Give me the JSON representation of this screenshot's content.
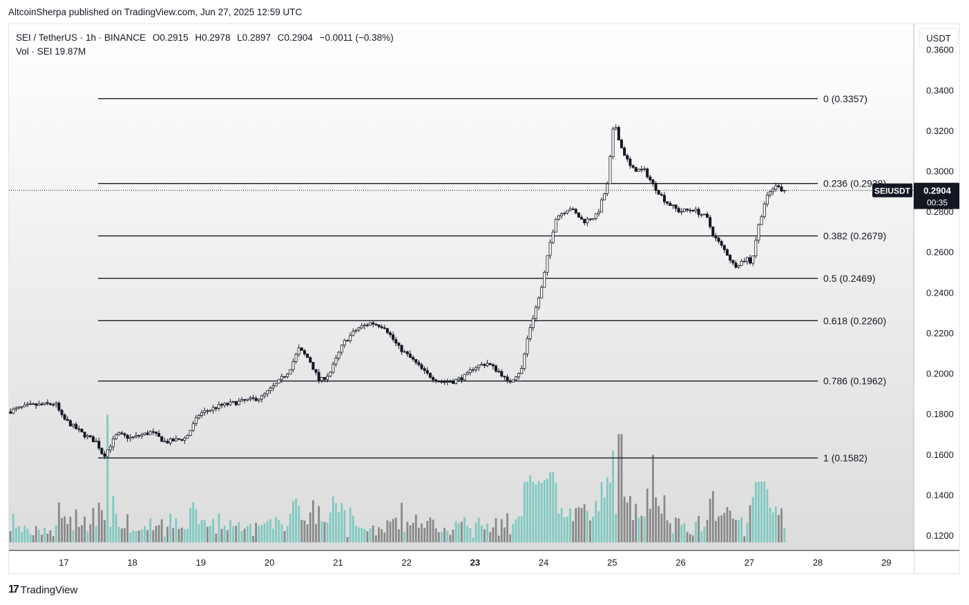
{
  "header": {
    "published_line": "AltcoinSherpa published on TradingView.com, Jun 27, 2025 12:59 UTC"
  },
  "legend": {
    "symbol": "SEI / TetherUS · 1h · BINANCE",
    "open": "O0.2915",
    "high": "H0.2978",
    "low": "L0.2897",
    "close": "C0.2904",
    "change": "−0.0011 (−0.38%)",
    "volume": "Vol · SEI  19.87M"
  },
  "footer": {
    "brand": "TradingView",
    "brand_mark": "17"
  },
  "colors": {
    "up": "#26a69a",
    "down": "#131722",
    "vol_up": "#7ec9c1",
    "vol_down": "#888888",
    "fib_line": "#131722",
    "price_tag": "#131722"
  },
  "chart_data": {
    "type": "candlestick",
    "currency_button": "USDT",
    "y_ticks": [
      "0.3600",
      "0.3400",
      "0.3200",
      "0.3000",
      "0.2800",
      "0.2600",
      "0.2400",
      "0.2200",
      "0.2000",
      "0.1800",
      "0.1600",
      "0.1400",
      "0.1200"
    ],
    "y_tick_values": [
      0.36,
      0.34,
      0.32,
      0.3,
      0.28,
      0.26,
      0.24,
      0.22,
      0.2,
      0.18,
      0.16,
      0.14,
      0.12
    ],
    "ylim": [
      0.1125,
      0.3725
    ],
    "x_ticks": [
      "17",
      "18",
      "19",
      "20",
      "21",
      "22",
      "23",
      "24",
      "25",
      "26",
      "27",
      "28",
      "29"
    ],
    "x_range_days": [
      16.2,
      29.4
    ],
    "last_day": 27.5,
    "fib_levels": [
      {
        "label": "0 (0.3357)",
        "value": 0.3357
      },
      {
        "label": "0.236 (0.2938)",
        "value": 0.2938
      },
      {
        "label": "0.382 (0.2679)",
        "value": 0.2679
      },
      {
        "label": "0.5 (0.2469)",
        "value": 0.2469
      },
      {
        "label": "0.618 (0.2260)",
        "value": 0.226
      },
      {
        "label": "0.786 (0.1962)",
        "value": 0.1962
      },
      {
        "label": "1 (0.1582)",
        "value": 0.1582
      }
    ],
    "fib_start_day": 17.5,
    "price_tag": {
      "symbol": "SEIUSDT",
      "price": "0.2904",
      "countdown": "00:35",
      "value": 0.2904
    },
    "anchors": [
      [
        16.2,
        0.181
      ],
      [
        16.5,
        0.184
      ],
      [
        16.9,
        0.185
      ],
      [
        17.0,
        0.178
      ],
      [
        17.3,
        0.17
      ],
      [
        17.5,
        0.166
      ],
      [
        17.6,
        0.159
      ],
      [
        17.8,
        0.17
      ],
      [
        18.0,
        0.168
      ],
      [
        18.3,
        0.171
      ],
      [
        18.5,
        0.166
      ],
      [
        18.8,
        0.168
      ],
      [
        19.0,
        0.18
      ],
      [
        19.3,
        0.184
      ],
      [
        19.6,
        0.186
      ],
      [
        19.9,
        0.188
      ],
      [
        20.1,
        0.194
      ],
      [
        20.3,
        0.201
      ],
      [
        20.45,
        0.212
      ],
      [
        20.6,
        0.207
      ],
      [
        20.75,
        0.196
      ],
      [
        20.9,
        0.2
      ],
      [
        21.1,
        0.215
      ],
      [
        21.3,
        0.222
      ],
      [
        21.5,
        0.225
      ],
      [
        21.7,
        0.223
      ],
      [
        21.9,
        0.213
      ],
      [
        22.1,
        0.207
      ],
      [
        22.3,
        0.2
      ],
      [
        22.5,
        0.196
      ],
      [
        22.7,
        0.196
      ],
      [
        22.9,
        0.199
      ],
      [
        23.0,
        0.203
      ],
      [
        23.2,
        0.205
      ],
      [
        23.4,
        0.2
      ],
      [
        23.5,
        0.195
      ],
      [
        23.7,
        0.202
      ],
      [
        23.8,
        0.22
      ],
      [
        24.0,
        0.243
      ],
      [
        24.1,
        0.262
      ],
      [
        24.2,
        0.277
      ],
      [
        24.4,
        0.282
      ],
      [
        24.6,
        0.275
      ],
      [
        24.8,
        0.278
      ],
      [
        24.95,
        0.293
      ],
      [
        25.05,
        0.325
      ],
      [
        25.15,
        0.312
      ],
      [
        25.3,
        0.301
      ],
      [
        25.5,
        0.3
      ],
      [
        25.6,
        0.294
      ],
      [
        25.8,
        0.285
      ],
      [
        26.0,
        0.28
      ],
      [
        26.2,
        0.281
      ],
      [
        26.4,
        0.277
      ],
      [
        26.5,
        0.268
      ],
      [
        26.7,
        0.259
      ],
      [
        26.8,
        0.253
      ],
      [
        27.0,
        0.257
      ],
      [
        27.05,
        0.254
      ],
      [
        27.15,
        0.272
      ],
      [
        27.25,
        0.285
      ],
      [
        27.35,
        0.291
      ],
      [
        27.45,
        0.293
      ],
      [
        27.5,
        0.2904
      ]
    ],
    "volume_spikes": [
      [
        17.62,
        0.1795
      ],
      [
        25.1,
        0.17
      ],
      [
        25.58,
        0.1598
      ],
      [
        25.0,
        0.1618
      ],
      [
        24.1,
        0.1512
      ],
      [
        27.18,
        0.1465
      ]
    ]
  }
}
